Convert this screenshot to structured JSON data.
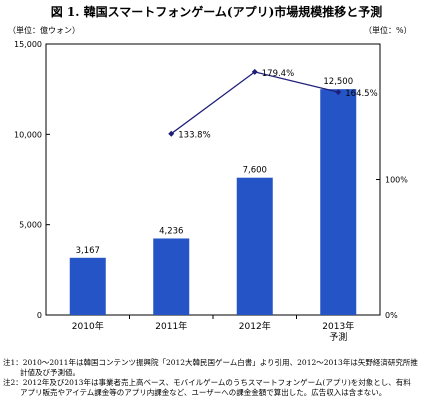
{
  "title": "図 1. 韓国スマートフォンゲーム(アプリ)市場規模推移と予測",
  "left_unit": "（単位：億ウォン）",
  "right_unit": "（単位：%）",
  "colors": {
    "bar": "#2554c7",
    "line": "#1f1f7a",
    "axis": "#000000"
  },
  "chart_data": {
    "type": "bar",
    "categories": [
      "2010年",
      "2011年",
      "2012年",
      "2013年\n予測"
    ],
    "series": [
      {
        "values": [
          3167,
          4236,
          7600,
          12500
        ]
      },
      {
        "values": [
          null,
          133.8,
          179.4,
          164.5
        ],
        "axis": "right"
      }
    ],
    "bar_labels": [
      "3,167",
      "4,236",
      "7,600",
      "12,500"
    ],
    "line_labels": [
      "",
      "133.8%",
      "179.4%",
      "164.5%"
    ],
    "ylim": [
      0,
      15000
    ],
    "yticks": [
      "0",
      "5,000",
      "10,000",
      "15,000"
    ],
    "y2lim": [
      0,
      200
    ],
    "y2ticks": [
      "0%",
      "100%"
    ],
    "grid": false,
    "legend": "none"
  },
  "notes": [
    "注1：2010～2011年は韓国コンテンツ振興院「2012大韓民国ゲーム白書」より引用、2012～2013年は矢野経済研究所推",
    "計値及び予測値。",
    "注2：2012年及び2013年は事業者売上高ベース、モバイルゲームのうちスマートフォンゲーム(アプリ)を対象とし、有料",
    "アプリ販売やアイテム課金等のアプリ内課金など、ユーザーへの課金金額で算出した。広告収入は含まない。"
  ]
}
